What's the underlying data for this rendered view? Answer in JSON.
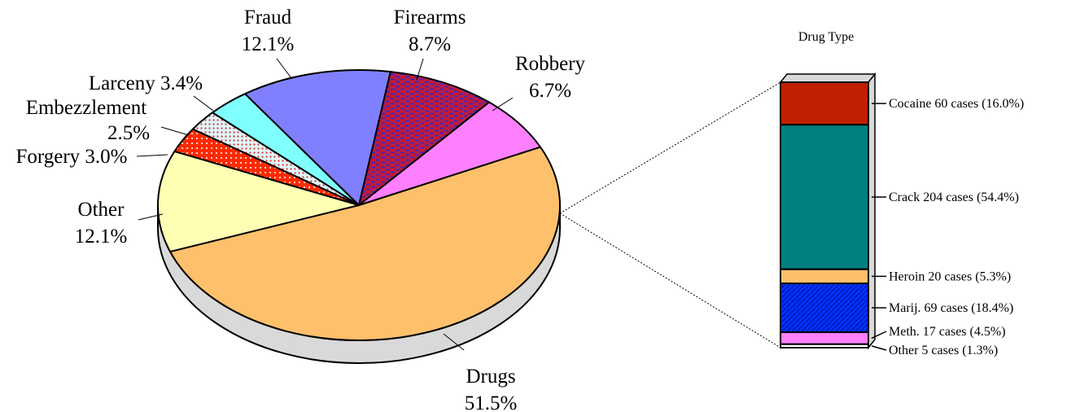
{
  "chart_data": [
    {
      "type": "pie",
      "title": "",
      "slices": [
        {
          "name": "Drugs",
          "value": 51.5,
          "label": "Drugs",
          "pct": "51.5%",
          "color": "#FFC06C"
        },
        {
          "name": "Other",
          "value": 12.1,
          "label": "Other",
          "pct": "12.1%",
          "color": "#FFFFB3"
        },
        {
          "name": "Forgery",
          "value": 3.0,
          "label": "Forgery",
          "pct": "3.0%",
          "color": "#FF2A00"
        },
        {
          "name": "Embezzlement",
          "value": 2.5,
          "label": "Embezzlement",
          "pct": "2.5%",
          "color": "#DFF6FA"
        },
        {
          "name": "Larceny",
          "value": 3.4,
          "label": "Larceny",
          "pct": "3.4%",
          "color": "#80FFFF"
        },
        {
          "name": "Fraud",
          "value": 12.1,
          "label": "Fraud",
          "pct": "12.1%",
          "color": "#8080FF"
        },
        {
          "name": "Firearms",
          "value": 8.7,
          "label": "Firearms",
          "pct": "8.7%",
          "color": "#C01A3A"
        },
        {
          "name": "Robbery",
          "value": 6.7,
          "label": "Robbery",
          "pct": "6.7%",
          "color": "#FF80FF"
        }
      ]
    },
    {
      "type": "bar",
      "title": "Drug Type",
      "stacked": true,
      "segments": [
        {
          "name": "Cocaine",
          "cases": 60,
          "percent": 16.0,
          "label": "Cocaine 60 cases (16.0%)",
          "color": "#C02000"
        },
        {
          "name": "Crack",
          "cases": 204,
          "percent": 54.4,
          "label": "Crack 204 cases (54.4%)",
          "color": "#008080"
        },
        {
          "name": "Heroin",
          "cases": 20,
          "percent": 5.3,
          "label": "Heroin 20 cases (5.3%)",
          "color": "#FFC06C"
        },
        {
          "name": "Marij.",
          "cases": 69,
          "percent": 18.4,
          "label": "Marij. 69 cases (18.4%)",
          "color": "#0033FF"
        },
        {
          "name": "Meth.",
          "cases": 17,
          "percent": 4.5,
          "label": "Meth. 17 cases (4.5%)",
          "color": "#FF80FF"
        },
        {
          "name": "Other",
          "cases": 5,
          "percent": 1.3,
          "label": "Other  5 cases (1.3%)",
          "color": "#FFFFFF"
        }
      ]
    }
  ]
}
